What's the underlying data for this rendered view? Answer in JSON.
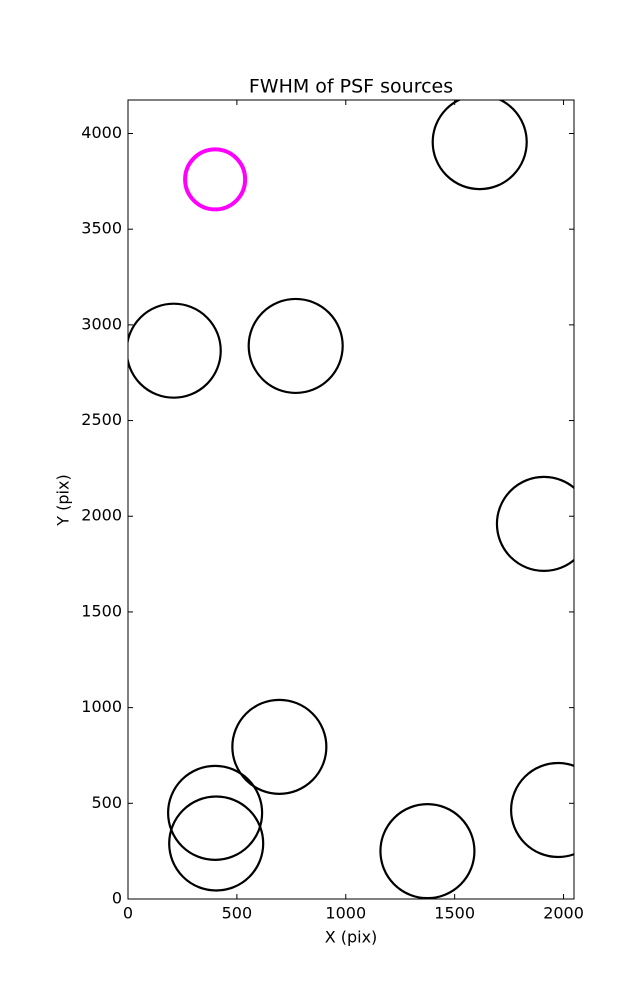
{
  "chart_data": {
    "type": "scatter",
    "title": "FWHM of PSF sources",
    "x_label": "X (pix)",
    "y_label": "Y (pix)",
    "series": [
      {
        "color": "#000000",
        "marker": "circle",
        "marker_size": 47,
        "line_width": 2.2,
        "x": [
          1615,
          210,
          770,
          1910,
          695,
          400,
          405,
          1375,
          1975
        ],
        "values": [
          3955,
          2865,
          2890,
          1960,
          795,
          450,
          290,
          250,
          465
        ]
      },
      {
        "color": "#ff00ff",
        "marker": "circle",
        "marker_size": 30,
        "line_width": 4,
        "x": [
          400
        ],
        "values": [
          3760
        ]
      }
    ],
    "xlim": [
      0,
      2048
    ],
    "ylim": [
      0,
      4175
    ],
    "xticks": [
      0,
      500,
      1000,
      1500,
      2000
    ],
    "yticks": [
      0,
      500,
      1000,
      1500,
      2000,
      2500,
      3000,
      3500,
      4000
    ],
    "grid": false
  }
}
